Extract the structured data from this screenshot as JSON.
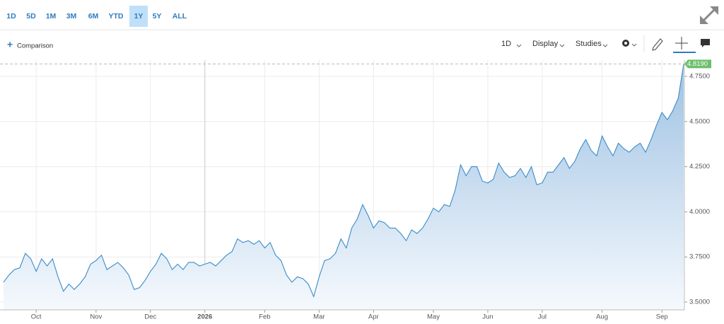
{
  "toolbar": {
    "ranges": [
      "1D",
      "5D",
      "1M",
      "3M",
      "6M",
      "YTD",
      "1Y",
      "5Y",
      "ALL"
    ],
    "active_range": "1Y",
    "comparison": "Comparison",
    "interval": "1D",
    "display": "Display",
    "studies": "Studies"
  },
  "chart_data": {
    "type": "line",
    "color": "#3a8cc8",
    "grid": true,
    "categories": [
      null,
      null,
      null,
      null,
      null,
      null,
      "Oct",
      null,
      null,
      null,
      null,
      null,
      null,
      null,
      null,
      null,
      null,
      "Nov",
      null,
      null,
      null,
      null,
      null,
      null,
      null,
      null,
      null,
      "Dec",
      null,
      null,
      null,
      null,
      null,
      null,
      null,
      null,
      null,
      "2026",
      null,
      null,
      null,
      null,
      null,
      null,
      null,
      null,
      null,
      null,
      "Feb",
      null,
      null,
      null,
      null,
      null,
      null,
      null,
      null,
      null,
      "Mar",
      null,
      null,
      null,
      null,
      null,
      null,
      null,
      null,
      null,
      "Apr",
      null,
      null,
      null,
      null,
      null,
      null,
      null,
      null,
      null,
      null,
      "May",
      null,
      null,
      null,
      null,
      null,
      null,
      null,
      null,
      null,
      "Jun",
      null,
      null,
      null,
      null,
      null,
      null,
      null,
      null,
      null,
      "Jul",
      null,
      null,
      null,
      null,
      null,
      null,
      null,
      null,
      null,
      null,
      "Aug",
      null,
      null,
      null,
      null,
      null,
      null,
      null,
      null,
      null,
      null,
      "Sep",
      null,
      null,
      null,
      null
    ],
    "values": [
      3.61,
      3.65,
      3.68,
      3.69,
      3.77,
      3.74,
      3.67,
      3.74,
      3.7,
      3.74,
      3.64,
      3.56,
      3.6,
      3.57,
      3.6,
      3.64,
      3.71,
      3.73,
      3.76,
      3.68,
      3.7,
      3.72,
      3.69,
      3.65,
      3.57,
      3.58,
      3.62,
      3.67,
      3.71,
      3.77,
      3.74,
      3.68,
      3.71,
      3.68,
      3.72,
      3.72,
      3.7,
      3.71,
      3.72,
      3.7,
      3.73,
      3.76,
      3.78,
      3.85,
      3.83,
      3.84,
      3.82,
      3.84,
      3.8,
      3.83,
      3.76,
      3.73,
      3.65,
      3.61,
      3.64,
      3.63,
      3.6,
      3.53,
      3.64,
      3.73,
      3.74,
      3.77,
      3.85,
      3.8,
      3.91,
      3.96,
      4.04,
      3.98,
      3.91,
      3.95,
      3.94,
      3.91,
      3.91,
      3.88,
      3.84,
      3.9,
      3.88,
      3.91,
      3.96,
      4.02,
      4.0,
      4.04,
      4.03,
      4.12,
      4.26,
      4.2,
      4.25,
      4.25,
      4.17,
      4.16,
      4.18,
      4.27,
      4.22,
      4.19,
      4.2,
      4.24,
      4.19,
      4.25,
      4.15,
      4.16,
      4.22,
      4.22,
      4.26,
      4.3,
      4.24,
      4.28,
      4.35,
      4.4,
      4.34,
      4.31,
      4.42,
      4.36,
      4.31,
      4.38,
      4.35,
      4.33,
      4.36,
      4.38,
      4.33,
      4.4,
      4.48,
      4.55,
      4.51,
      4.56,
      4.63,
      4.819
    ],
    "ylim": [
      3.457,
      4.84
    ],
    "yticks": [
      {
        "value": 3.5,
        "label": "3.5000"
      },
      {
        "value": 3.75,
        "label": "3.7500"
      },
      {
        "value": 4,
        "label": "4.0000"
      },
      {
        "value": 4.25,
        "label": "4.2500"
      },
      {
        "value": 4.5,
        "label": "4.5000"
      },
      {
        "value": 4.75,
        "label": "4.7500"
      }
    ],
    "price_marker": {
      "value": 4.819,
      "label": "4.8190"
    }
  }
}
